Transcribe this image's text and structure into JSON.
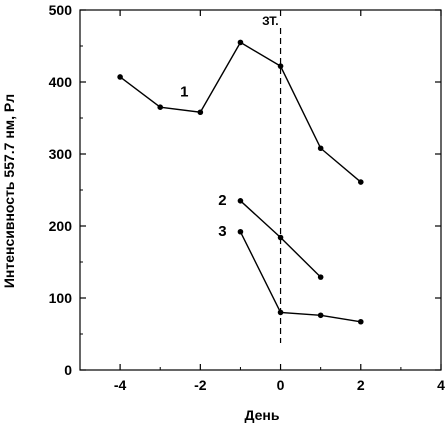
{
  "chart_data": {
    "type": "line",
    "xlabel": "День",
    "ylabel": "Интенсивность 557.7 нм, Рл",
    "xlim": [
      -5,
      4
    ],
    "ylim": [
      0,
      500
    ],
    "xticks": [
      -4,
      -2,
      0,
      2,
      4
    ],
    "yticks": [
      0,
      100,
      200,
      300,
      400,
      500
    ],
    "grid": false,
    "series": [
      {
        "name": "1",
        "x": [
          -4,
          -3,
          -2,
          -1,
          0,
          1,
          2
        ],
        "y": [
          407,
          365,
          358,
          455,
          422,
          308,
          261
        ]
      },
      {
        "name": "2",
        "x": [
          -1,
          0,
          1
        ],
        "y": [
          235,
          184,
          129
        ]
      },
      {
        "name": "3",
        "x": [
          -1,
          0,
          1,
          2
        ],
        "y": [
          192,
          80,
          76,
          67
        ]
      }
    ],
    "annotations": [
      {
        "text": "ЗТ.",
        "x": 0,
        "style": "vertical-dashed-line"
      }
    ],
    "colors": {
      "line": "#000000",
      "axis": "#000000",
      "background": "#ffffff"
    }
  }
}
